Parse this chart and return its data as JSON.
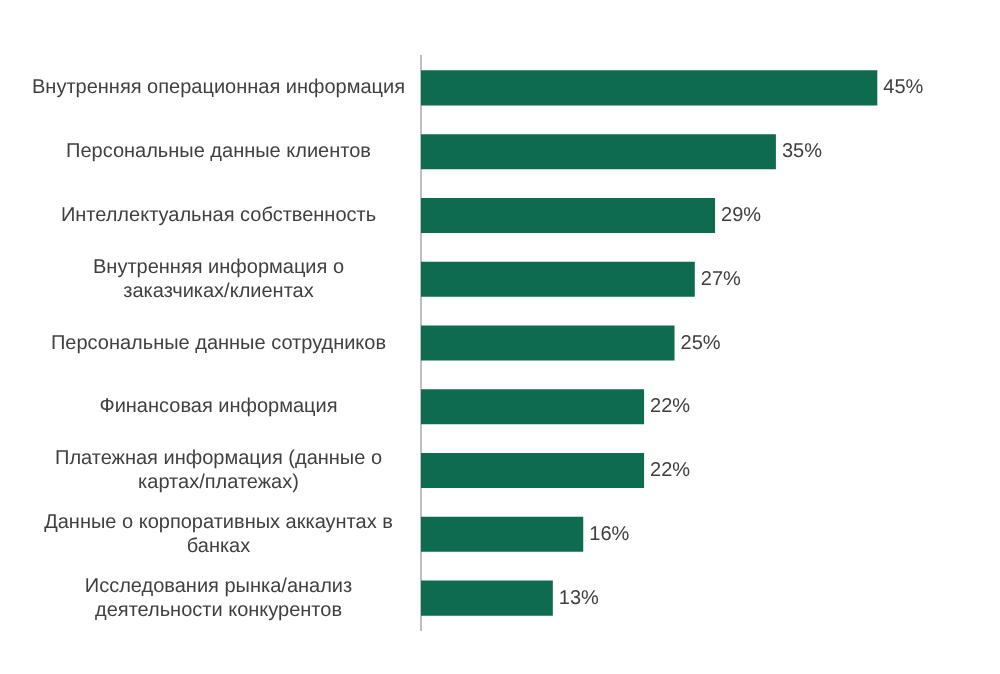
{
  "chart_data": {
    "type": "bar",
    "orientation": "horizontal",
    "categories": [
      "Внутренняя операционная информация",
      "Персональные данные клиентов",
      "Интеллектуальная собственность",
      "Внутренняя информация о заказчиках/клиентах",
      "Персональные данные сотрудников",
      "Финансовая информация",
      "Платежная информация (данные о картах/платежах)",
      "Данные о корпоративных аккаунтах в банках",
      "Исследования рынка/анализ деятельности конкурентов"
    ],
    "values": [
      45,
      35,
      29,
      27,
      25,
      22,
      22,
      16,
      13
    ],
    "value_labels": [
      "45%",
      "35%",
      "29%",
      "27%",
      "25%",
      "22%",
      "22%",
      "16%",
      "13%"
    ],
    "color": "#0e6b4f",
    "grid": false,
    "legend": false,
    "tick_labels": "y"
  }
}
